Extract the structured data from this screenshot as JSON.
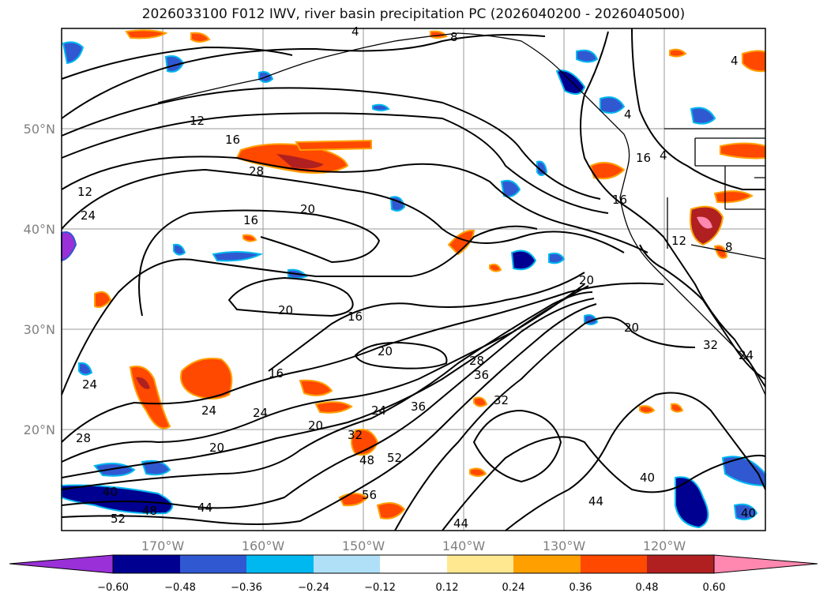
{
  "title": "2026033100 F012 IWV, river basin precipitation PC (2026040200 - 2026040500)",
  "lat_labels": [
    "50°N",
    "40°N",
    "30°N",
    "20°N"
  ],
  "lon_labels": [
    "170°W",
    "160°W",
    "150°W",
    "140°W",
    "130°W",
    "120°W"
  ],
  "contour_labels": [
    "8",
    "4",
    "4",
    "12",
    "16",
    "28",
    "12",
    "24",
    "20",
    "16",
    "20",
    "16",
    "20",
    "16",
    "24",
    "24",
    "28",
    "24",
    "20",
    "32",
    "48",
    "52",
    "56",
    "44",
    "44",
    "40",
    "40",
    "44",
    "52",
    "48",
    "40",
    "28",
    "24",
    "20",
    "32",
    "16",
    "20",
    "4",
    "16",
    "12",
    "8",
    "4",
    "20",
    "32",
    "24",
    "36",
    "36"
  ],
  "colorbar": {
    "ticks": [
      "−0.60",
      "−0.48",
      "−0.36",
      "−0.24",
      "−0.12",
      "0.12",
      "0.24",
      "0.36",
      "0.48",
      "0.60"
    ],
    "colors": [
      "#9a30d8",
      "#000090",
      "#3058d0",
      "#00b8f0",
      "#b0e0f8",
      "#ffffff",
      "#ffe890",
      "#ffa000",
      "#ff4800",
      "#b02020",
      "#ff88b0"
    ]
  }
}
